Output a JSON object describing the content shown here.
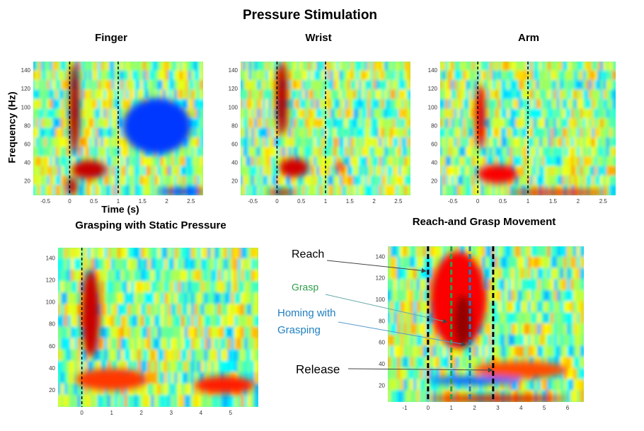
{
  "title": "Pressure Stimulation",
  "chart_data": [
    {
      "type": "heatmap",
      "title": "Finger",
      "x_label": "Time (s)",
      "y_label": "Frequency (Hz)",
      "xlim": [
        -0.75,
        2.75
      ],
      "ylim": [
        5,
        150
      ],
      "xticks": [
        -0.5,
        0,
        0.5,
        1,
        1.5,
        2,
        2.5
      ],
      "yticks": [
        20,
        40,
        60,
        80,
        100,
        120,
        140
      ],
      "markers": [
        {
          "x": 0,
          "color": "#000000"
        },
        {
          "x": 1,
          "color": "#000000"
        }
      ]
    },
    {
      "type": "heatmap",
      "title": "Wrist",
      "xlim": [
        -0.75,
        2.75
      ],
      "ylim": [
        5,
        150
      ],
      "xticks": [
        -0.5,
        0,
        0.5,
        1,
        1.5,
        2,
        2.5
      ],
      "yticks": [
        20,
        40,
        60,
        80,
        100,
        120,
        140
      ],
      "markers": [
        {
          "x": 0,
          "color": "#000000"
        },
        {
          "x": 1,
          "color": "#000000"
        }
      ]
    },
    {
      "type": "heatmap",
      "title": "Arm",
      "xlim": [
        -0.75,
        2.75
      ],
      "ylim": [
        5,
        150
      ],
      "xticks": [
        -0.5,
        0,
        0.5,
        1,
        1.5,
        2,
        2.5
      ],
      "yticks": [
        20,
        40,
        60,
        80,
        100,
        120,
        140
      ],
      "markers": [
        {
          "x": 0,
          "color": "#000000"
        },
        {
          "x": 1,
          "color": "#000000"
        }
      ]
    },
    {
      "type": "heatmap",
      "title": "Grasping with Static Pressure",
      "xlim": [
        -0.8,
        5.93
      ],
      "ylim": [
        5,
        150
      ],
      "xticks": [
        0,
        1,
        2,
        3,
        4,
        5
      ],
      "yticks": [
        20,
        40,
        60,
        80,
        100,
        120,
        140
      ],
      "markers": [
        {
          "x": 0,
          "color": "#000000"
        }
      ]
    },
    {
      "type": "heatmap",
      "title": "Reach-and Grasp Movement",
      "xlim": [
        -1.73,
        6.7
      ],
      "ylim": [
        5,
        150
      ],
      "xticks": [
        -1,
        0,
        1,
        2,
        3,
        4,
        5,
        6
      ],
      "yticks": [
        20,
        40,
        60,
        80,
        100,
        120,
        140
      ],
      "markers": [
        {
          "x": 0,
          "color": "#000000"
        },
        {
          "x": 1,
          "color": "#2e9e4a"
        },
        {
          "x": 1.8,
          "color": "#1f7fc0"
        },
        {
          "x": 2.8,
          "color": "#000000"
        }
      ],
      "annotations": [
        {
          "lines": [
            "Reach"
          ],
          "color": "#000000"
        },
        {
          "lines": [
            "Grasp"
          ],
          "color": "#2e9e4a"
        },
        {
          "lines": [
            "Homing with",
            "Grasping"
          ],
          "color": "#1f7fc0"
        },
        {
          "lines": [
            "Release"
          ],
          "color": "#000000"
        }
      ]
    }
  ]
}
